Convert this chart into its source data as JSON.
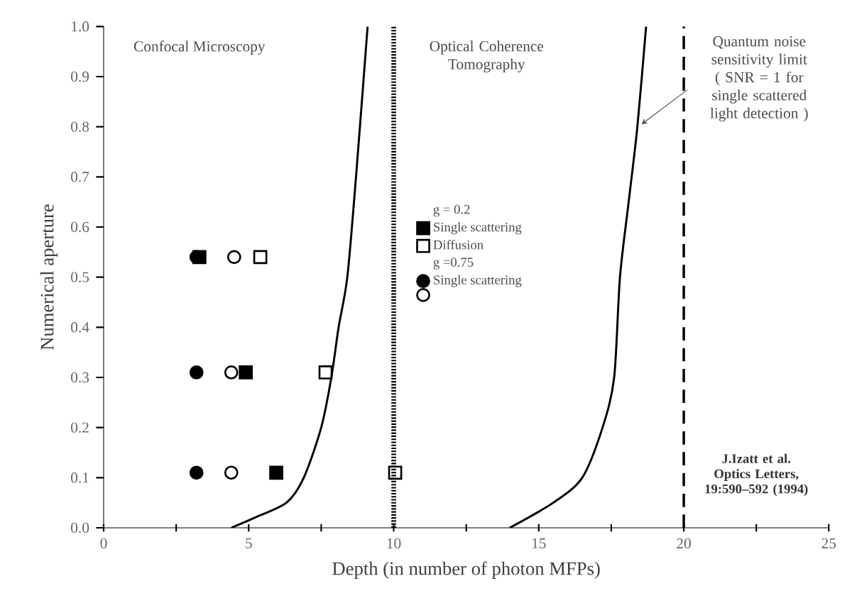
{
  "chart_data": {
    "type": "scatter",
    "xlabel": "Depth (in number of photon MFPs)",
    "ylabel": "Numerical aperture",
    "xlim": [
      0,
      25
    ],
    "ylim": [
      0,
      1
    ],
    "xticks": [
      0,
      {
        "value": 2.5,
        "label": null
      },
      5,
      {
        "value": 7.5,
        "label": null
      },
      10,
      {
        "value": 12.5,
        "label": null
      },
      15,
      {
        "value": 17.5,
        "label": null
      },
      20,
      {
        "value": 22.5,
        "label": null
      },
      25
    ],
    "yticks": [
      {
        "value": 0,
        "label": "0.0"
      },
      {
        "value": 0.1,
        "label": "0.1"
      },
      {
        "value": 0.2,
        "label": "0.2"
      },
      {
        "value": 0.3,
        "label": "0.3"
      },
      {
        "value": 0.4,
        "label": "0.4"
      },
      {
        "value": 0.5,
        "label": "0.5"
      },
      {
        "value": 0.6,
        "label": "0.6"
      },
      {
        "value": 0.7,
        "label": "0.7"
      },
      {
        "value": 0.8,
        "label": "0.8"
      },
      {
        "value": 0.9,
        "label": "0.9"
      },
      {
        "value": 1.0,
        "label": "1.0"
      }
    ],
    "legend": "top right",
    "series": [
      {
        "type": "line",
        "color": "#000000",
        "line_style": "solid",
        "marker": "none",
        "x": [
          4.4,
          5.2,
          6.3,
          6.9,
          7.5,
          7.85,
          8.1,
          8.4,
          8.7,
          9.1
        ],
        "values": [
          0,
          0.02,
          0.05,
          0.1,
          0.2,
          0.3,
          0.4,
          0.5,
          0.7,
          1.0
        ]
      },
      {
        "type": "line",
        "color": "#000000",
        "line_style": "solid",
        "marker": "none",
        "x": [
          14.0,
          15.5,
          16.5,
          17.2,
          17.6,
          17.8,
          18.1,
          18.4,
          18.7
        ],
        "values": [
          0,
          0.05,
          0.1,
          0.2,
          0.3,
          0.5,
          0.65,
          0.8,
          1.0
        ]
      },
      {
        "name": "Single scattering",
        "color": "#000000",
        "marker": "square",
        "x": [
          3.3,
          4.9,
          5.95
        ],
        "values": [
          0.54,
          0.31,
          0.11
        ]
      },
      {
        "name": "Diffusion",
        "color": "#000000",
        "marker": "square-open",
        "x": [
          5.4,
          7.65,
          10.05
        ],
        "values": [
          0.54,
          0.31,
          0.11
        ]
      },
      {
        "name": "Single scattering",
        "color": "#000000",
        "marker": "circle",
        "x": [
          3.2,
          3.2,
          3.2
        ],
        "values": [
          0.54,
          0.31,
          0.11
        ]
      },
      {
        "color": "#000000",
        "marker": "circle-open",
        "x": [
          4.5,
          4.4,
          4.4
        ],
        "values": [
          0.54,
          0.31,
          0.11
        ]
      }
    ],
    "ref_lines": [
      {
        "axis": "x",
        "value": 10,
        "line_style": "dotted"
      },
      {
        "axis": "x",
        "value": 20,
        "line_style": "dashed"
      }
    ],
    "annotations": [
      "Confocal Microscopy",
      "Optical Coherence Tomography",
      "g = 0.2",
      "g =0.75",
      "J.Izatt et al. Optics Letters, 19:590–592 (1994)",
      "Quantum noise sensitivity limit ( SNR = 1 for single scattered light detection )"
    ]
  }
}
